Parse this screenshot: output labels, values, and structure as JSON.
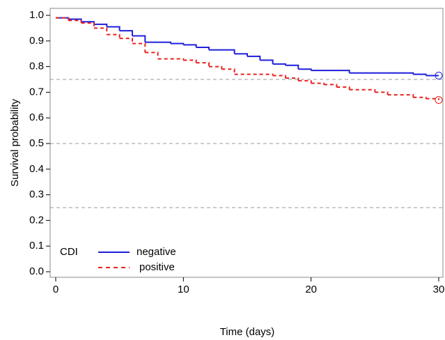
{
  "chart_data": {
    "type": "step",
    "x_label": "Time (days)",
    "y_label": "Survival probability",
    "xlim": [
      0,
      30
    ],
    "xticks": [
      0,
      10,
      20,
      30
    ],
    "ylim": [
      0,
      1
    ],
    "yticks": [
      {
        "value": 0,
        "label": "0.0"
      },
      0.1,
      0.2,
      0.3,
      0.4,
      0.5,
      0.6,
      0.7,
      0.8,
      0.9,
      {
        "value": 1,
        "label": "1.0"
      }
    ],
    "reference_lines": [
      0.25,
      0.5,
      0.75
    ],
    "legend_title": "CDI",
    "legend_position": "lower left",
    "censor_marker": true,
    "series": [
      {
        "name": "negative",
        "color": "#1f1fdc",
        "line_style": "solid",
        "x": [
          0,
          1,
          2,
          3,
          4,
          5,
          6,
          7,
          9,
          10,
          11,
          12,
          14,
          15,
          16,
          17,
          18,
          19,
          20,
          23,
          28,
          29,
          30
        ],
        "values": [
          0.99,
          0.985,
          0.975,
          0.965,
          0.955,
          0.94,
          0.92,
          0.895,
          0.89,
          0.885,
          0.875,
          0.865,
          0.85,
          0.84,
          0.825,
          0.81,
          0.805,
          0.79,
          0.785,
          0.775,
          0.77,
          0.765,
          0.765
        ]
      },
      {
        "name": "positive",
        "color": "#e8231f",
        "line_style": "dashed",
        "x": [
          0,
          1,
          2,
          3,
          4,
          5,
          6,
          7,
          8,
          10,
          11,
          12,
          13,
          14,
          17,
          18,
          19,
          20,
          21,
          22,
          23,
          25,
          26,
          28,
          29,
          30
        ],
        "values": [
          0.99,
          0.98,
          0.97,
          0.95,
          0.925,
          0.91,
          0.89,
          0.855,
          0.83,
          0.825,
          0.815,
          0.8,
          0.79,
          0.77,
          0.765,
          0.755,
          0.745,
          0.735,
          0.73,
          0.72,
          0.71,
          0.7,
          0.69,
          0.68,
          0.675,
          0.67
        ]
      }
    ]
  }
}
